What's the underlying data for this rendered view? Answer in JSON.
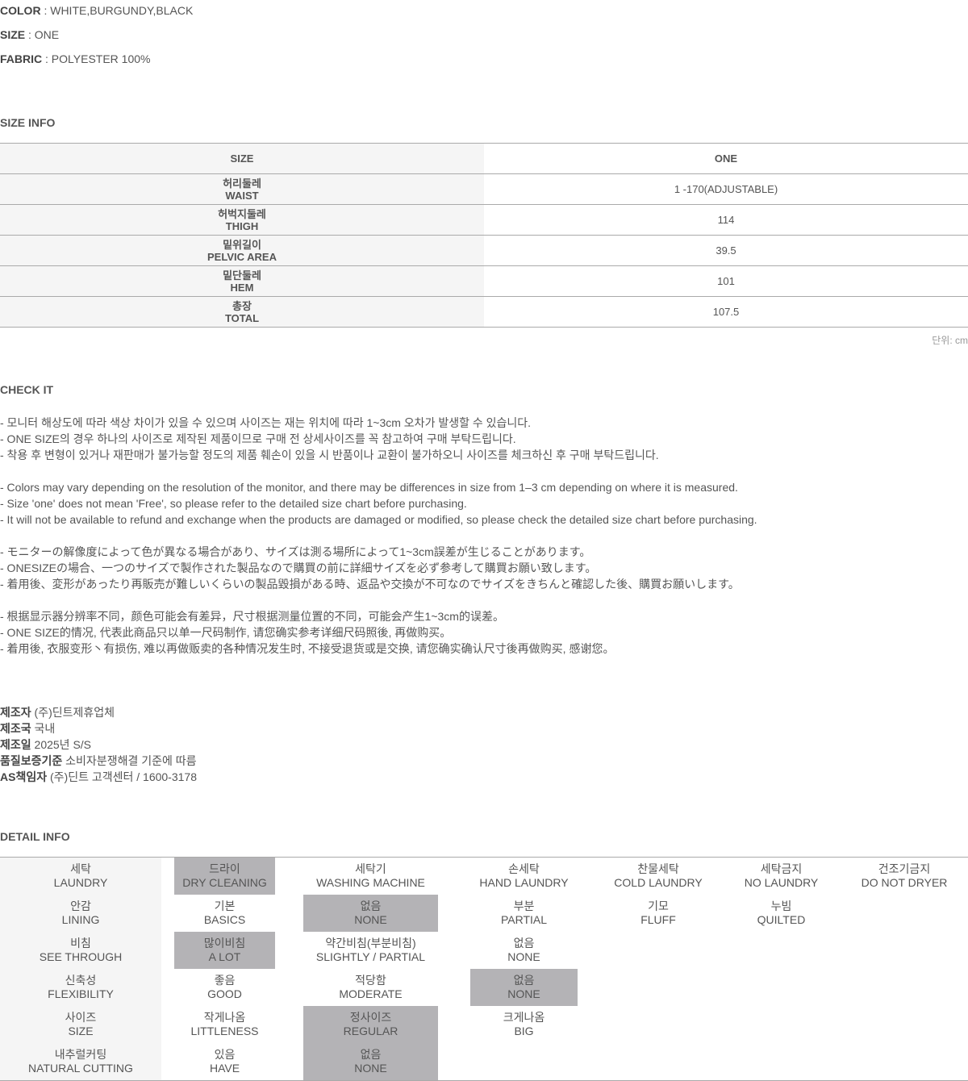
{
  "specs": [
    {
      "label": "COLOR",
      "value": "WHITE,BURGUNDY,BLACK"
    },
    {
      "label": "SIZE",
      "value": "ONE"
    },
    {
      "label": "FABRIC",
      "value": "POLYESTER 100%"
    }
  ],
  "size_info": {
    "title": "SIZE INFO",
    "header": [
      "SIZE",
      "ONE"
    ],
    "rows": [
      {
        "ko": "허리둘레",
        "en": "WAIST",
        "value": "1 -170(ADJUSTABLE)"
      },
      {
        "ko": "허벅지둘레",
        "en": "THIGH",
        "value": "114"
      },
      {
        "ko": "밑위길이",
        "en": "PELVIC AREA",
        "value": "39.5"
      },
      {
        "ko": "밑단둘레",
        "en": "HEM",
        "value": "101"
      },
      {
        "ko": "총장",
        "en": "TOTAL",
        "value": "107.5"
      }
    ],
    "unit": "단위: cm"
  },
  "check_it": {
    "title": "CHECK IT",
    "groups": [
      [
        "- 모니터 해상도에 따라 색상 차이가 있을 수 있으며 사이즈는 재는 위치에 따라 1~3cm 오차가 발생할 수 있습니다.",
        "- ONE SIZE의 경우 하나의 사이즈로 제작된 제품이므로 구매 전 상세사이즈를 꼭 참고하여 구매 부탁드립니다.",
        "- 착용 후 변형이 있거나 재판매가 불가능할 정도의 제품 훼손이 있을 시 반품이나 교환이 불가하오니 사이즈를 체크하신 후 구매 부탁드립니다."
      ],
      [
        "- Colors may vary depending on the resolution of the monitor, and there may be differences in size from 1–3 cm depending on where it is measured.",
        "- Size 'one' does not mean 'Free', so please refer to the detailed size chart before purchasing.",
        "- It will not be available to refund and exchange when the products are damaged or modified, so please check the detailed size chart before purchasing."
      ],
      [
        "- モニターの解像度によって色が異なる場合があり、サイズは測る場所によって1~3cm誤差が生じることがあります。",
        "- ONESIZEの場合、一つのサイズで製作された製品なので購買の前に詳細サイズを必ず参考して購買お願い致します。",
        "- 着用後、変形があったり再販売が難しいくらいの製品毀損がある時、返品や交換が不可なのでサイズをきちんと確認した後、購買お願いします。"
      ],
      [
        "- 根据显示器分辨率不同，颜色可能会有差异，尺寸根据测量位置的不同，可能会产生1~3cm的误差。",
        "- ONE SIZE的情况, 代表此商品只以单一尺码制作, 请您确实参考详细尺码照後, 再做购买。",
        "- 着用後, 衣服变形丶有损伤, 难以再做贩卖的各种情况发生时, 不接受退货或是交换, 请您确实确认尺寸後再做购买, 感谢您。"
      ]
    ]
  },
  "maker": [
    {
      "label": "제조자",
      "value": "(주)딘트제휴업체"
    },
    {
      "label": "제조국",
      "value": "국내"
    },
    {
      "label": "제조일",
      "value": "2025년 S/S"
    },
    {
      "label": "품질보증기준",
      "value": "소비자분쟁해결 기준에 따름"
    },
    {
      "label": "AS책임자",
      "value": "(주)딘트 고객센터 / 1600-3178"
    }
  ],
  "detail_info": {
    "title": "DETAIL INFO",
    "highlight_color": "#b4b3b6",
    "rows": [
      [
        {
          "ko": "세탁",
          "en": "LAUNDRY"
        },
        {
          "ko": "드라이",
          "en": "DRY CLEANING",
          "sel": true
        },
        {
          "ko": "세탁기",
          "en": "WASHING MACHINE"
        },
        {
          "ko": "손세탁",
          "en": "HAND LAUNDRY"
        },
        {
          "ko": "찬물세탁",
          "en": "COLD LAUNDRY"
        },
        {
          "ko": "세탁금지",
          "en": "NO LAUNDRY"
        },
        {
          "ko": "건조기금지",
          "en": "DO NOT DRYER"
        }
      ],
      [
        {
          "ko": "안감",
          "en": "LINING"
        },
        {
          "ko": "기본",
          "en": "BASICS"
        },
        {
          "ko": "없음",
          "en": "NONE",
          "sel": true
        },
        {
          "ko": "부분",
          "en": "PARTIAL"
        },
        {
          "ko": "기모",
          "en": "FLUFF"
        },
        {
          "ko": "누빔",
          "en": "QUILTED"
        },
        {}
      ],
      [
        {
          "ko": "비침",
          "en": "SEE THROUGH"
        },
        {
          "ko": "많이비침",
          "en": "A LOT",
          "sel": true
        },
        {
          "ko": "약간비침(부분비침)",
          "en": "SLIGHTLY / PARTIAL"
        },
        {
          "ko": "없음",
          "en": "NONE"
        },
        {},
        {},
        {}
      ],
      [
        {
          "ko": "신축성",
          "en": "FLEXIBILITY"
        },
        {
          "ko": "좋음",
          "en": "GOOD"
        },
        {
          "ko": "적당함",
          "en": "MODERATE"
        },
        {
          "ko": "없음",
          "en": "NONE",
          "sel": true
        },
        {},
        {},
        {}
      ],
      [
        {
          "ko": "사이즈",
          "en": "SIZE"
        },
        {
          "ko": "작게나옴",
          "en": "LITTLENESS"
        },
        {
          "ko": "정사이즈",
          "en": "REGULAR",
          "sel": true
        },
        {
          "ko": "크게나옴",
          "en": "BIG"
        },
        {},
        {},
        {}
      ],
      [
        {
          "ko": "내추럴커팅",
          "en": "NATURAL CUTTING"
        },
        {
          "ko": "있음",
          "en": "HAVE"
        },
        {
          "ko": "없음",
          "en": "NONE",
          "sel": true
        },
        {},
        {},
        {},
        {}
      ]
    ]
  }
}
